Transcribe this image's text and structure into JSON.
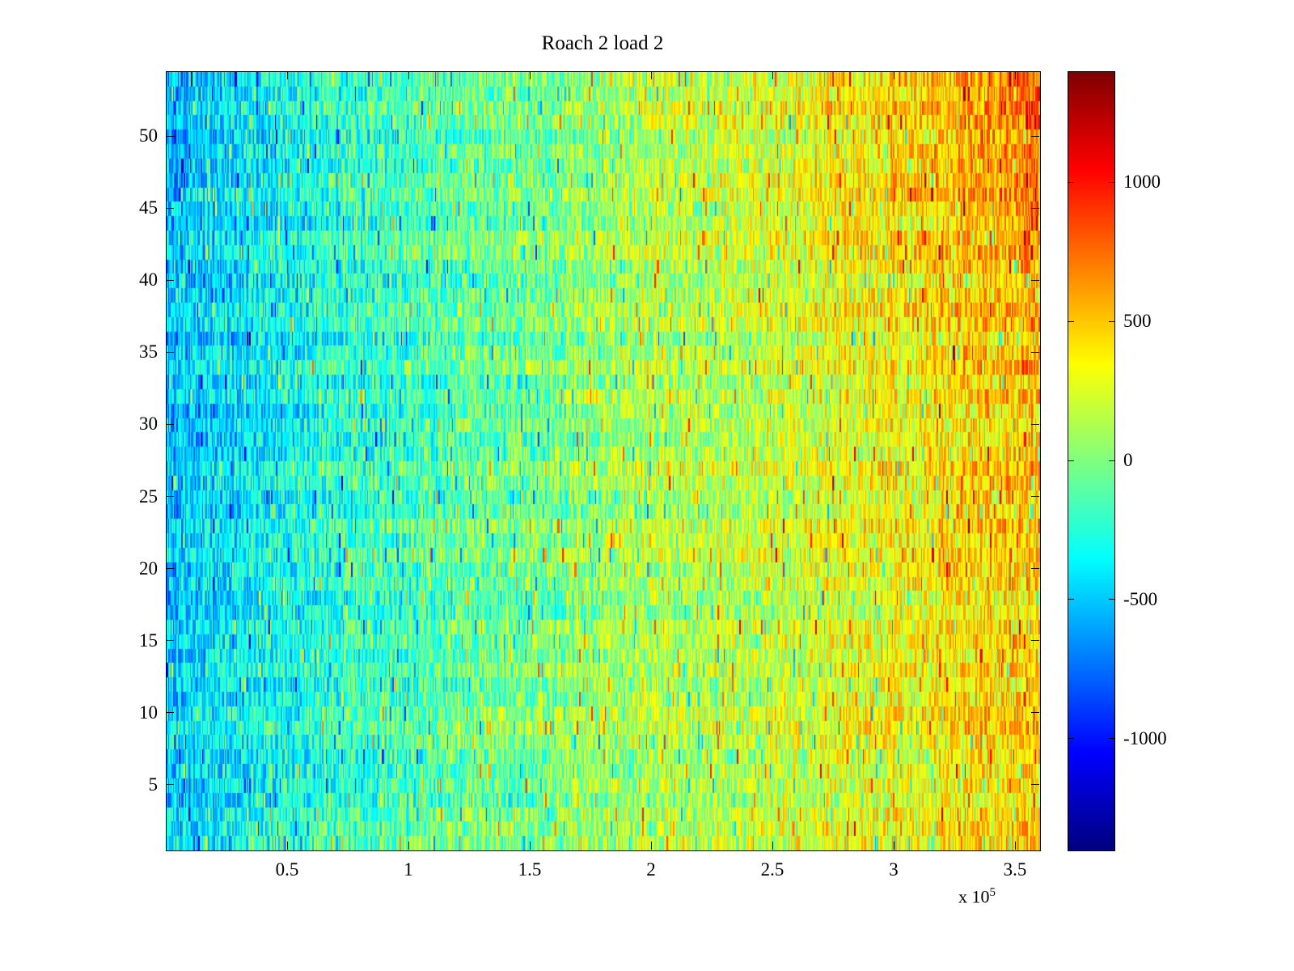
{
  "title": "Roach 2 load 2",
  "layout_colors": {
    "background": "#ffffff",
    "axis": "#000000"
  },
  "chart_data": {
    "type": "heatmap",
    "title": "Roach 2 load 2",
    "colormap": "jet",
    "x_range": [
      0,
      360000
    ],
    "x_offset_base": "x 10",
    "x_offset_exp": "5",
    "x_ticks": [
      {
        "value": 50000,
        "label": "0.5"
      },
      {
        "value": 100000,
        "label": "1"
      },
      {
        "value": 150000,
        "label": "1.5"
      },
      {
        "value": 200000,
        "label": "2"
      },
      {
        "value": 250000,
        "label": "2.5"
      },
      {
        "value": 300000,
        "label": "3"
      },
      {
        "value": 350000,
        "label": "3.5"
      }
    ],
    "y_range": [
      0.5,
      54.5
    ],
    "y_ticks": [
      {
        "value": 5,
        "label": "5"
      },
      {
        "value": 10,
        "label": "10"
      },
      {
        "value": 15,
        "label": "15"
      },
      {
        "value": 20,
        "label": "20"
      },
      {
        "value": 25,
        "label": "25"
      },
      {
        "value": 30,
        "label": "30"
      },
      {
        "value": 35,
        "label": "35"
      },
      {
        "value": 40,
        "label": "40"
      },
      {
        "value": 45,
        "label": "45"
      },
      {
        "value": 50,
        "label": "50"
      }
    ],
    "rows": 54,
    "cols": 720,
    "color_range": [
      -1400,
      1400
    ],
    "colorbar_ticks": [
      {
        "value": 1000,
        "label": "1000"
      },
      {
        "value": 500,
        "label": "500"
      },
      {
        "value": 0,
        "label": "0"
      },
      {
        "value": -500,
        "label": "-500"
      },
      {
        "value": -1000,
        "label": "-1000"
      }
    ],
    "trend_grid": [
      [
        -600,
        -400,
        -250,
        -150,
        -100,
        0,
        150,
        200,
        300,
        400,
        550,
        800
      ],
      [
        -550,
        -380,
        -260,
        -160,
        -80,
        0,
        140,
        180,
        280,
        380,
        500,
        650
      ],
      [
        -500,
        -350,
        -250,
        -150,
        -60,
        20,
        160,
        160,
        260,
        350,
        450,
        560
      ],
      [
        -520,
        -360,
        -240,
        -140,
        -60,
        20,
        150,
        150,
        250,
        330,
        430,
        500
      ],
      [
        -480,
        -340,
        -230,
        -130,
        -50,
        30,
        140,
        140,
        240,
        320,
        420,
        480
      ],
      [
        -450,
        -320,
        -220,
        -120,
        -40,
        40,
        130,
        130,
        230,
        310,
        400,
        450
      ]
    ],
    "noise": {
      "cell": 330,
      "row": 90,
      "col": 60,
      "spike_prob": 0.08,
      "spike_min": 250,
      "spike_max": 650,
      "seed": 42
    }
  }
}
